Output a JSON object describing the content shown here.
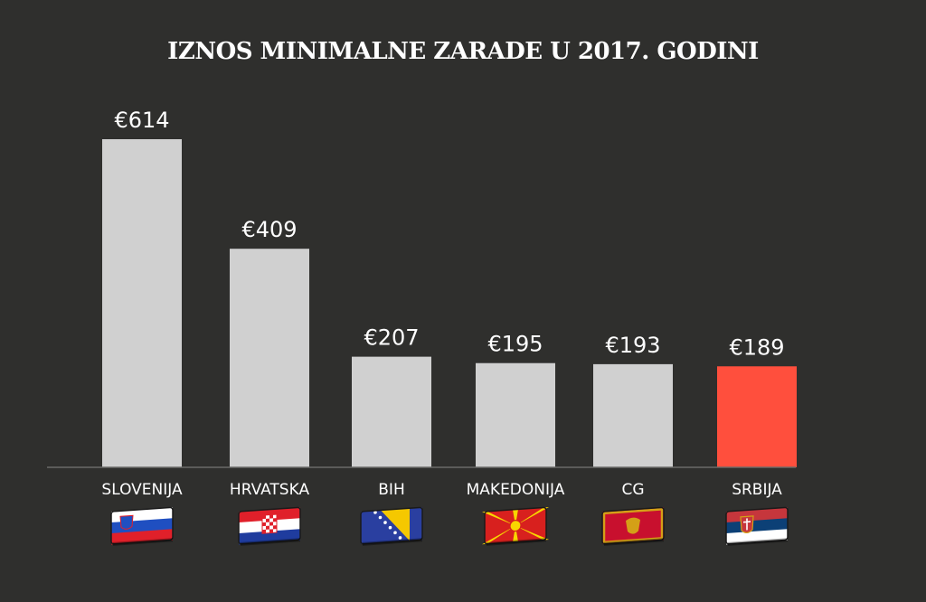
{
  "chart_data": {
    "type": "bar",
    "title": "IZNOS MINIMALNE ZARADE U 2017. GODINI",
    "categories": [
      "SLOVENIJA",
      "HRVATSKA",
      "BIH",
      "MAKEDONIJA",
      "CG",
      "SRBIJA"
    ],
    "values": [
      614,
      409,
      207,
      195,
      193,
      189
    ],
    "value_labels": [
      "€614",
      "€409",
      "€207",
      "€195",
      "€193",
      "€189"
    ],
    "flag_icons": [
      "slovenia-flag-icon",
      "croatia-flag-icon",
      "bosnia-flag-icon",
      "macedonia-flag-icon",
      "montenegro-flag-icon",
      "serbia-flag-icon"
    ],
    "bar_colors": [
      "#d0d0d0",
      "#d0d0d0",
      "#d0d0d0",
      "#d0d0d0",
      "#d0d0d0",
      "#ff4f3d"
    ],
    "ylim": [
      0,
      700
    ],
    "grid": false,
    "legend": "none"
  }
}
